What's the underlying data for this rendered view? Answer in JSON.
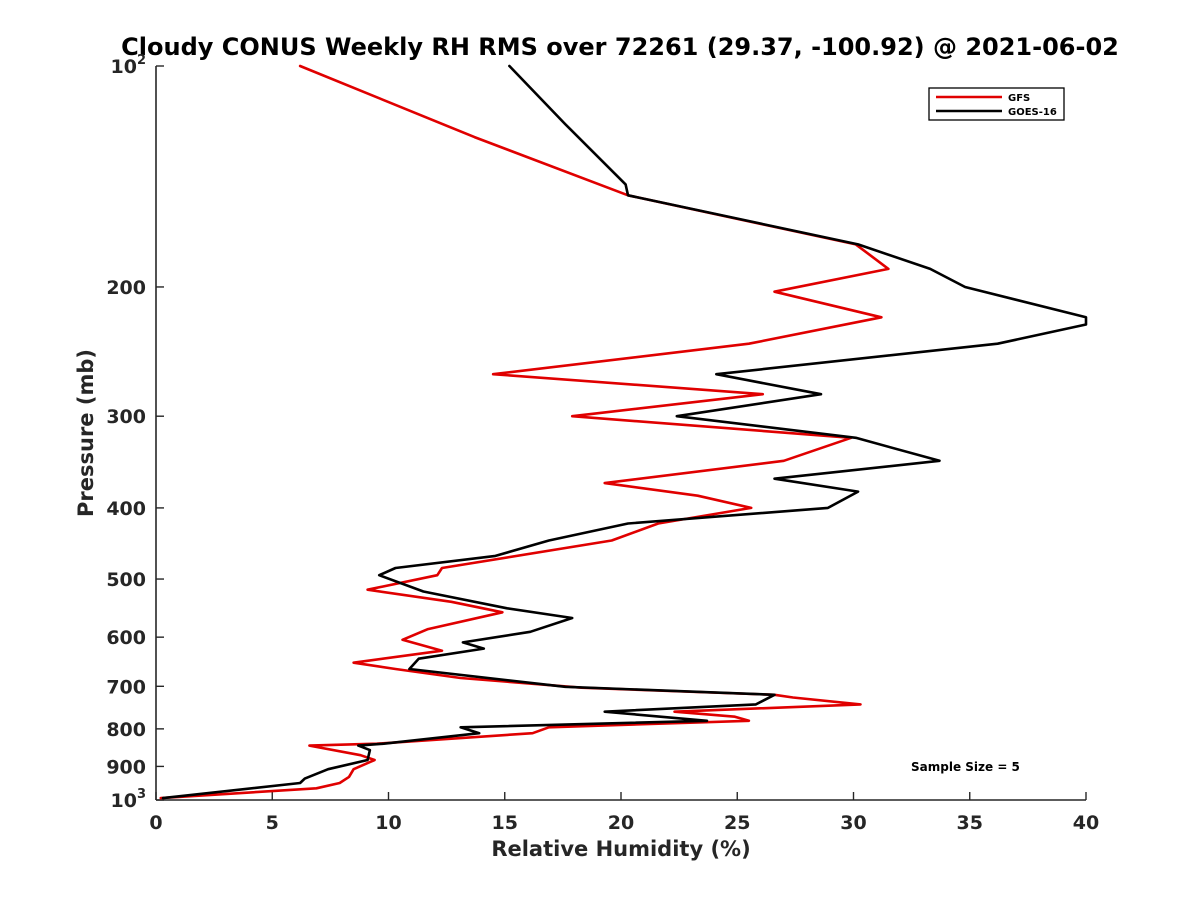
{
  "chart_data": {
    "type": "line",
    "title": "Cloudy CONUS Weekly RH RMS over 72261 (29.37, -100.92) @ 2021-06-02",
    "xlabel": "Relative Humidity (%)",
    "ylabel": "Pressure (mb)",
    "xlim": [
      0,
      40
    ],
    "ylim": [
      100,
      1000
    ],
    "yscale": "log",
    "y_reversed": true,
    "x_ticks": [
      "0",
      "5",
      "10",
      "15",
      "20",
      "25",
      "30",
      "35",
      "40"
    ],
    "y_ticks": [
      {
        "value": 100,
        "label": "10",
        "sup": "2"
      },
      {
        "value": 200,
        "label": "200",
        "sup": ""
      },
      {
        "value": 300,
        "label": "300",
        "sup": ""
      },
      {
        "value": 400,
        "label": "400",
        "sup": ""
      },
      {
        "value": 500,
        "label": "500",
        "sup": ""
      },
      {
        "value": 600,
        "label": "600",
        "sup": ""
      },
      {
        "value": 700,
        "label": "700",
        "sup": ""
      },
      {
        "value": 800,
        "label": "800",
        "sup": ""
      },
      {
        "value": 900,
        "label": "900",
        "sup": ""
      },
      {
        "value": 1000,
        "label": "10",
        "sup": "3"
      }
    ],
    "grid": false,
    "legend_position": "top-right",
    "annotation": "Sample Size = 5",
    "series": [
      {
        "name": "GFS",
        "color": "#e00000",
        "points": [
          [
            6.2,
            100
          ],
          [
            13.7,
            125
          ],
          [
            20.3,
            150
          ],
          [
            30.1,
            175
          ],
          [
            31.5,
            189
          ],
          [
            26.6,
            203
          ],
          [
            31.2,
            220
          ],
          [
            25.5,
            239
          ],
          [
            14.5,
            263
          ],
          [
            26.1,
            280
          ],
          [
            17.9,
            300
          ],
          [
            29.9,
            321
          ],
          [
            27,
            345
          ],
          [
            19.3,
            370
          ],
          [
            23.3,
            385
          ],
          [
            25.6,
            400
          ],
          [
            21.6,
            420
          ],
          [
            19.6,
            443
          ],
          [
            12.3,
            483
          ],
          [
            12.1,
            494
          ],
          [
            9.1,
            517
          ],
          [
            12.7,
            537
          ],
          [
            14.9,
            555
          ],
          [
            11.7,
            585
          ],
          [
            10.6,
            605
          ],
          [
            12.3,
            626
          ],
          [
            8.5,
            650
          ],
          [
            10.3,
            663
          ],
          [
            13.1,
            682
          ],
          [
            18.3,
            703
          ],
          [
            26.6,
            719
          ],
          [
            27.4,
            725
          ],
          [
            30.3,
            741
          ],
          [
            22.3,
            758
          ],
          [
            24.9,
            770
          ],
          [
            25.5,
            780
          ],
          [
            16.9,
            796
          ],
          [
            16.2,
            811
          ],
          [
            9.5,
            838
          ],
          [
            6.6,
            843
          ],
          [
            8.8,
            869
          ],
          [
            9.4,
            882
          ],
          [
            8.5,
            908
          ],
          [
            8.3,
            930
          ],
          [
            7.9,
            948
          ],
          [
            6.9,
            964
          ],
          [
            0.2,
            994
          ]
        ]
      },
      {
        "name": "GOES-16",
        "color": "#000000",
        "points": [
          [
            15.2,
            100
          ],
          [
            17.6,
            120
          ],
          [
            20.2,
            145
          ],
          [
            20.3,
            150
          ],
          [
            30.2,
            175
          ],
          [
            33.3,
            189
          ],
          [
            34.8,
            200
          ],
          [
            40,
            220
          ],
          [
            40,
            225
          ],
          [
            36.2,
            239
          ],
          [
            24.1,
            263
          ],
          [
            28.6,
            280
          ],
          [
            22.4,
            300
          ],
          [
            30.1,
            321
          ],
          [
            33.7,
            345
          ],
          [
            26.6,
            365
          ],
          [
            30.2,
            380
          ],
          [
            28.9,
            400
          ],
          [
            20.3,
            420
          ],
          [
            16.9,
            443
          ],
          [
            14.6,
            465
          ],
          [
            10.3,
            483
          ],
          [
            9.6,
            494
          ],
          [
            11.5,
            520
          ],
          [
            15.1,
            548
          ],
          [
            17.9,
            565
          ],
          [
            16.1,
            590
          ],
          [
            13.2,
            610
          ],
          [
            14.1,
            622
          ],
          [
            11.3,
            642
          ],
          [
            10.9,
            663
          ],
          [
            17.6,
            701
          ],
          [
            26.6,
            719
          ],
          [
            25.8,
            741
          ],
          [
            19.3,
            758
          ],
          [
            23.7,
            780
          ],
          [
            13.1,
            796
          ],
          [
            13.9,
            811
          ],
          [
            9.8,
            838
          ],
          [
            8.7,
            843
          ],
          [
            9.2,
            855
          ],
          [
            9.1,
            882
          ],
          [
            7.4,
            908
          ],
          [
            6.4,
            935
          ],
          [
            6.2,
            948
          ],
          [
            0.3,
            994
          ]
        ]
      }
    ]
  }
}
